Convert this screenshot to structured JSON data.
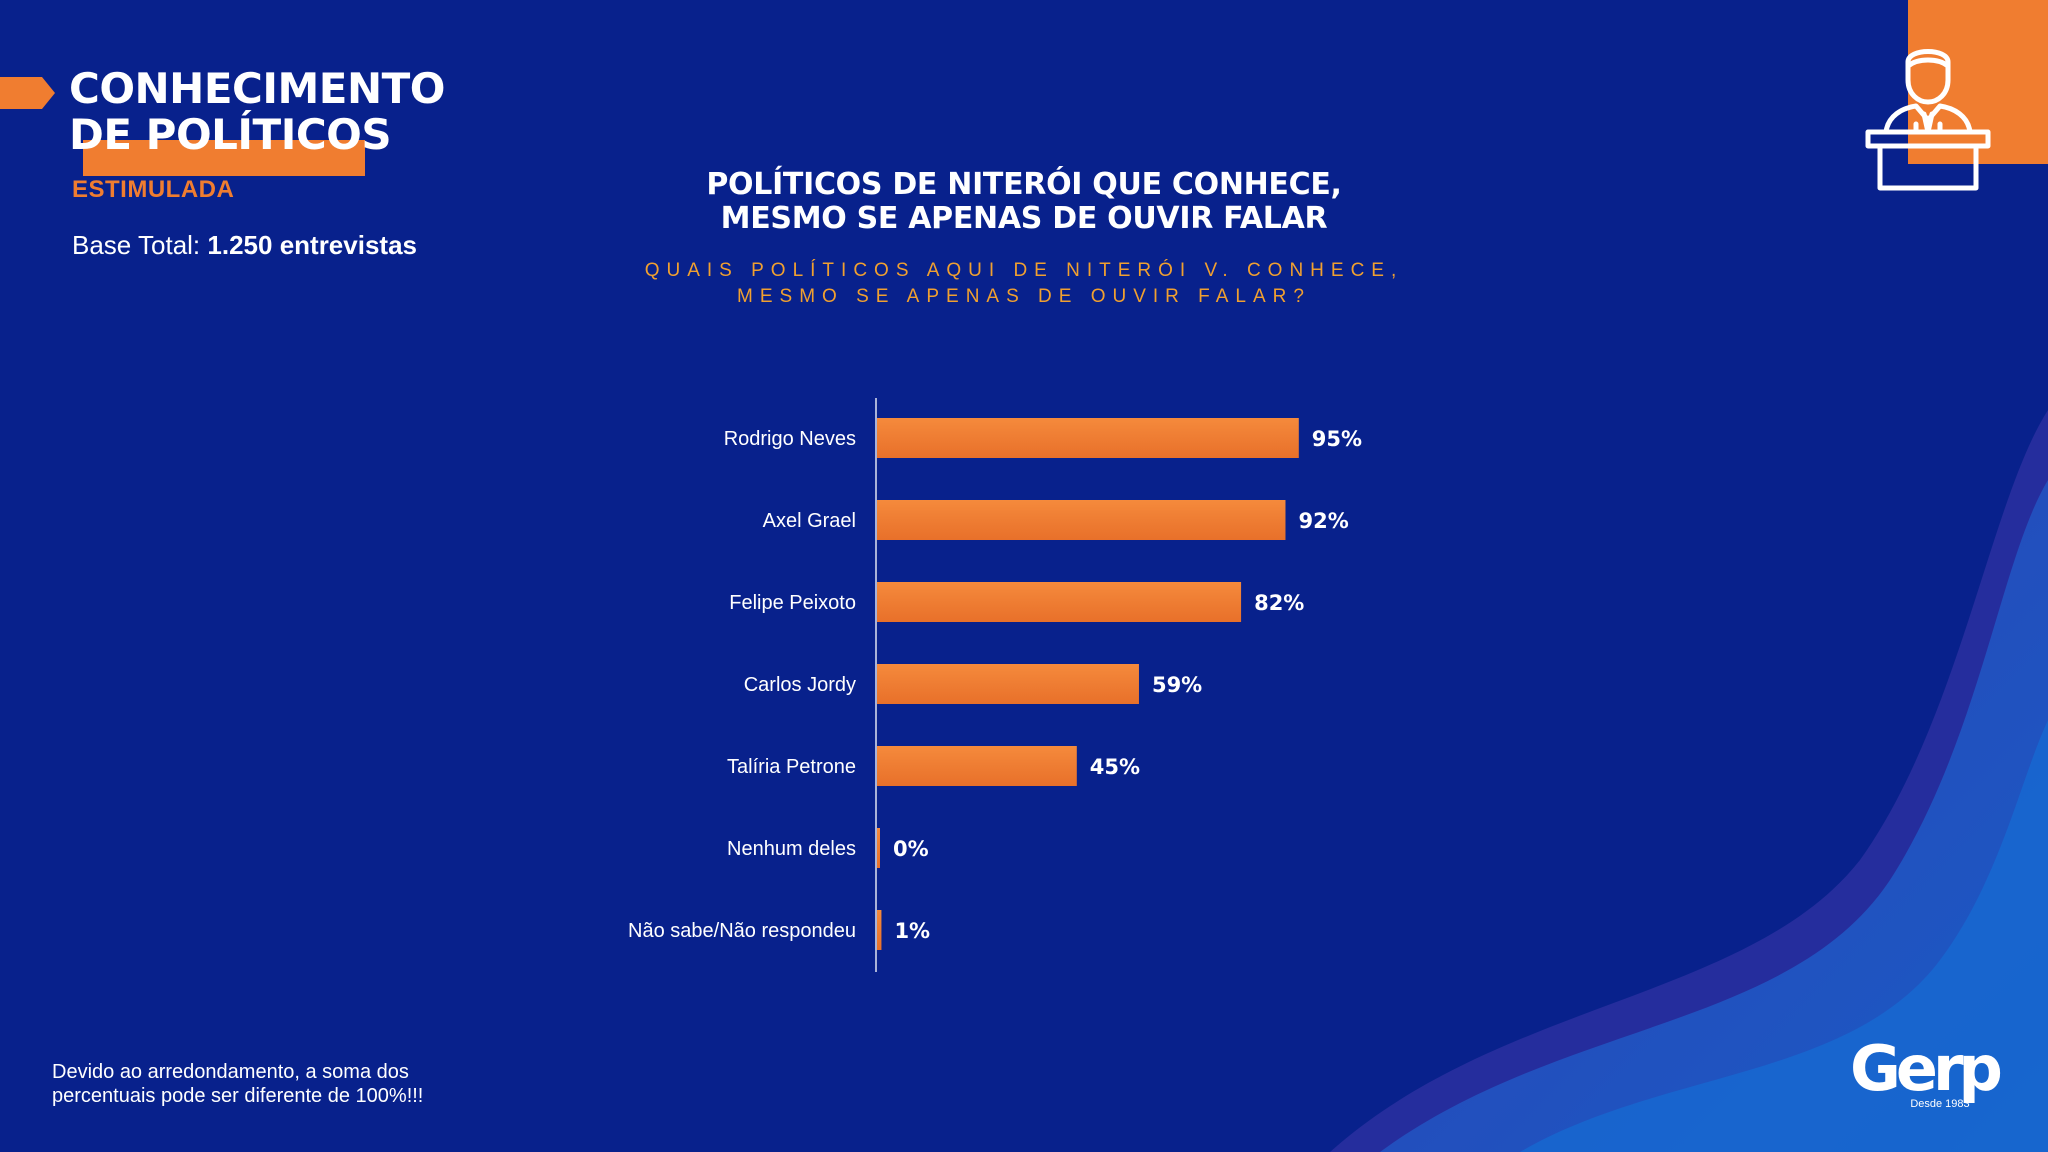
{
  "header": {
    "section_title_line1": "CONHECIMENTO",
    "section_title_line2": "DE POLÍTICOS",
    "section_subtitle": "ESTIMULADA",
    "base_label": "Base Total:",
    "base_value": "1.250 entrevistas"
  },
  "chart_title": {
    "line1": "POLÍTICOS DE NITERÓI QUE CONHECE,",
    "line2": "MESMO SE APENAS DE OUVIR FALAR"
  },
  "question": {
    "line1": "QUAIS POLÍTICOS AQUI DE NITERÓI V. CONHECE,",
    "line2": "MESMO SE APENAS DE OUVIR FALAR?"
  },
  "footnote": {
    "line1": "Devido ao arredondamento, a soma dos",
    "line2": "percentuais pode ser diferente de 100%!!!"
  },
  "logo": {
    "name": "Gerp",
    "since": "Desde 1983"
  },
  "icons": {
    "top_right": "speaker-podium-icon",
    "left_marker": "arrow-marker-icon"
  },
  "colors": {
    "background": "#08218c",
    "accent": "#f07d30",
    "question_text": "#f0a030",
    "text": "#ffffff"
  },
  "chart_data": {
    "type": "bar",
    "orientation": "horizontal",
    "categories": [
      "Rodrigo Neves",
      "Axel Grael",
      "Felipe Peixoto",
      "Carlos Jordy",
      "Talíria Petrone",
      "Nenhum deles",
      "Não sabe/Não respondeu"
    ],
    "values": [
      95,
      92,
      82,
      59,
      45,
      0,
      1
    ],
    "value_labels": [
      "95%",
      "92%",
      "82%",
      "59%",
      "45%",
      "0%",
      "1%"
    ],
    "unit": "%",
    "xlim": [
      0,
      100
    ],
    "grid": false,
    "legend": "none",
    "bar_color": "#f07d30"
  }
}
